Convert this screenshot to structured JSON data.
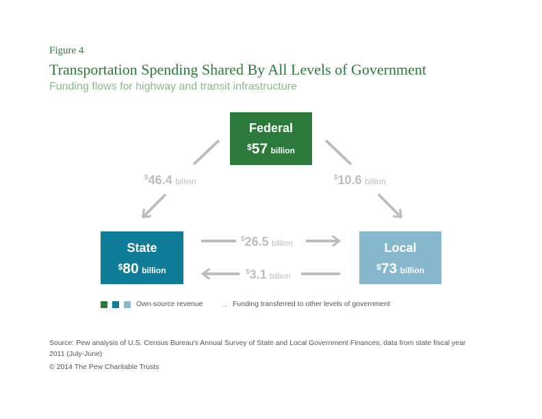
{
  "figure": {
    "label": "Figure 4",
    "title": "Transportation Spending Shared By All Levels of Government",
    "subtitle": "Funding flows for highway and transit infrastructure"
  },
  "nodes": {
    "federal": {
      "name": "Federal",
      "currency": "$",
      "amount": "57",
      "unit": "billion",
      "color": "#2b7a3b"
    },
    "state": {
      "name": "State",
      "currency": "$",
      "amount": "80",
      "unit": "billion",
      "color": "#0e7d97"
    },
    "local": {
      "name": "Local",
      "currency": "$",
      "amount": "73",
      "unit": "billion",
      "color": "#86b7cc"
    }
  },
  "flows": {
    "federal_to_state": {
      "currency": "$",
      "amount": "46.4",
      "unit": "billion"
    },
    "federal_to_local": {
      "currency": "$",
      "amount": "10.6",
      "unit": "billion"
    },
    "state_to_local": {
      "currency": "$",
      "amount": "26.5",
      "unit": "billion"
    },
    "local_to_state": {
      "currency": "$",
      "amount": "3.1",
      "unit": "billion"
    }
  },
  "legend": {
    "own_source": "Own-source revenue",
    "transfer": "Funding transferred to other levels of government",
    "arrow_icon": "right-arrow-icon",
    "arrow_color": "#bdbdbd"
  },
  "footer": {
    "source": "Source: Pew analysis of U.S. Census Bureau's Annual Survey of State and Local Government Finances, data from state fiscal year 2011 (July-June)",
    "copyright": "© 2014 The Pew Charitable Trusts"
  }
}
